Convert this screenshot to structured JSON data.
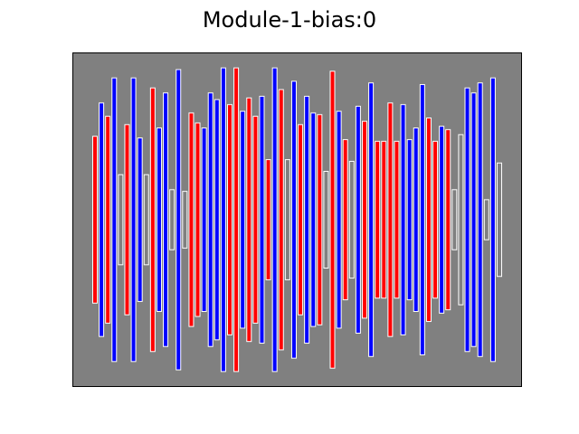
{
  "chart_data": {
    "type": "bar",
    "title": "Module-1-bias:0",
    "xlabel": "",
    "ylabel": "",
    "ylim": [
      -1,
      1
    ],
    "grid": false,
    "axis_ticks": false,
    "legend": "none",
    "background_color": "#808080",
    "bar_edge_color": "#ffffff",
    "series_colors": {
      "positive": "#ff0000",
      "negative": "#0000ff",
      "neutral": "#ffffff"
    },
    "bars": [
      {
        "value": -0.5,
        "sign": "positive"
      },
      {
        "value": -0.7,
        "sign": "negative"
      },
      {
        "value": -0.62,
        "sign": "positive"
      },
      {
        "value": -0.85,
        "sign": "negative"
      },
      {
        "value": -0.27,
        "sign": "neutral"
      },
      {
        "value": -0.57,
        "sign": "positive"
      },
      {
        "value": -0.85,
        "sign": "negative"
      },
      {
        "value": -0.49,
        "sign": "negative"
      },
      {
        "value": -0.27,
        "sign": "neutral"
      },
      {
        "value": -0.79,
        "sign": "positive"
      },
      {
        "value": -0.55,
        "sign": "negative"
      },
      {
        "value": -0.76,
        "sign": "negative"
      },
      {
        "value": -0.18,
        "sign": "neutral"
      },
      {
        "value": -0.9,
        "sign": "negative"
      },
      {
        "value": -0.17,
        "sign": "neutral"
      },
      {
        "value": -0.64,
        "sign": "positive"
      },
      {
        "value": -0.58,
        "sign": "positive"
      },
      {
        "value": -0.55,
        "sign": "negative"
      },
      {
        "value": -0.76,
        "sign": "negative"
      },
      {
        "value": -0.72,
        "sign": "negative"
      },
      {
        "value": -0.91,
        "sign": "negative"
      },
      {
        "value": -0.69,
        "sign": "positive"
      },
      {
        "value": -0.91,
        "sign": "positive"
      },
      {
        "value": -0.65,
        "sign": "negative"
      },
      {
        "value": -0.73,
        "sign": "positive"
      },
      {
        "value": -0.62,
        "sign": "positive"
      },
      {
        "value": -0.74,
        "sign": "negative"
      },
      {
        "value": -0.36,
        "sign": "positive"
      },
      {
        "value": -0.91,
        "sign": "negative"
      },
      {
        "value": -0.78,
        "sign": "positive"
      },
      {
        "value": -0.36,
        "sign": "neutral"
      },
      {
        "value": -0.83,
        "sign": "negative"
      },
      {
        "value": -0.57,
        "sign": "positive"
      },
      {
        "value": -0.74,
        "sign": "negative"
      },
      {
        "value": -0.64,
        "sign": "negative"
      },
      {
        "value": -0.63,
        "sign": "positive"
      },
      {
        "value": -0.29,
        "sign": "neutral"
      },
      {
        "value": -0.89,
        "sign": "positive"
      },
      {
        "value": -0.65,
        "sign": "negative"
      },
      {
        "value": -0.48,
        "sign": "positive"
      },
      {
        "value": -0.35,
        "sign": "neutral"
      },
      {
        "value": -0.68,
        "sign": "negative"
      },
      {
        "value": -0.59,
        "sign": "positive"
      },
      {
        "value": -0.82,
        "sign": "negative"
      },
      {
        "value": -0.47,
        "sign": "positive"
      },
      {
        "value": -0.47,
        "sign": "positive"
      },
      {
        "value": -0.7,
        "sign": "positive"
      },
      {
        "value": -0.47,
        "sign": "positive"
      },
      {
        "value": -0.69,
        "sign": "negative"
      },
      {
        "value": -0.48,
        "sign": "negative"
      },
      {
        "value": -0.55,
        "sign": "negative"
      },
      {
        "value": -0.81,
        "sign": "negative"
      },
      {
        "value": -0.61,
        "sign": "positive"
      },
      {
        "value": -0.47,
        "sign": "positive"
      },
      {
        "value": -0.56,
        "sign": "negative"
      },
      {
        "value": -0.54,
        "sign": "positive"
      },
      {
        "value": -0.18,
        "sign": "neutral"
      },
      {
        "value": -0.51,
        "sign": "neutral"
      },
      {
        "value": -0.79,
        "sign": "negative"
      },
      {
        "value": -0.76,
        "sign": "negative"
      },
      {
        "value": -0.82,
        "sign": "negative"
      },
      {
        "value": -0.12,
        "sign": "neutral"
      },
      {
        "value": -0.85,
        "sign": "negative"
      },
      {
        "value": -0.34,
        "sign": "neutral"
      }
    ]
  }
}
